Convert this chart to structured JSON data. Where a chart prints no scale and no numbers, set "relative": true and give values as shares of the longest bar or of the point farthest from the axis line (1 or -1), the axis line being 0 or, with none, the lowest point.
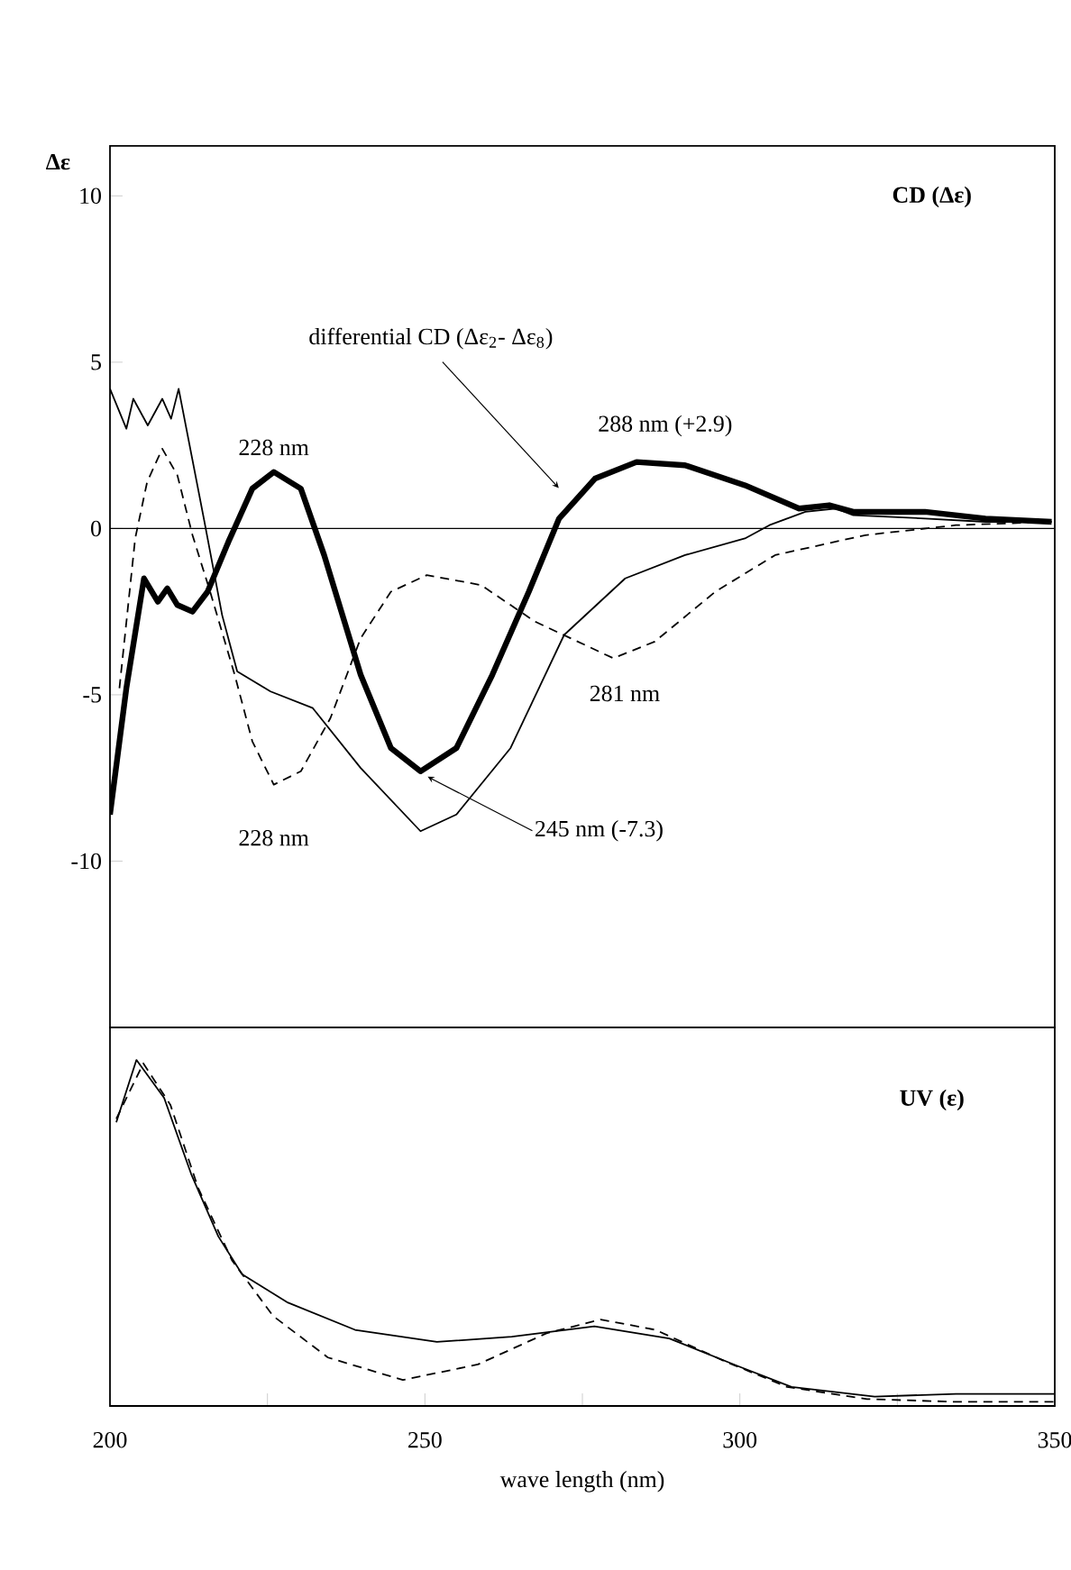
{
  "chart_data": [
    {
      "type": "line",
      "title": "CD (Δε)",
      "ylabel": "Δε",
      "xlim": [
        200,
        350
      ],
      "ylim": [
        -15,
        11.5
      ],
      "yticks": [
        -10,
        -5,
        0,
        5,
        10
      ],
      "tick_labels": "y",
      "ref_lines": [
        {
          "axis": "y",
          "value": 0
        }
      ],
      "annotations": [
        {
          "text": "228 nm",
          "x": 226,
          "y": 1.7
        },
        {
          "text": "228 nm",
          "x": 226,
          "y": -7.7
        },
        {
          "text": "245 nm (-7.3)",
          "x": 249.3,
          "y": -7.3
        },
        {
          "text": "281 nm",
          "x": 280,
          "y": -3.9
        },
        {
          "text": "288 nm (+2.9)",
          "x": 284,
          "y": 2.0
        }
      ],
      "series": [
        {
          "color": "#000000",
          "line_style": "solid",
          "x": [
            200,
            202.6,
            203.7,
            206,
            208.3,
            209.7,
            210.9,
            214.9,
            217.8,
            220.2,
            225.5,
            232.2,
            239.8,
            249.3,
            255,
            263.6,
            272.1,
            281.8,
            291.3,
            300.8,
            304.7,
            310.4,
            315.2,
            318,
            329.4,
            339,
            349.5
          ],
          "values": [
            4.2,
            3.0,
            3.9,
            3.1,
            3.9,
            3.3,
            4.2,
            0.3,
            -2.6,
            -4.3,
            -4.9,
            -5.4,
            -7.2,
            -9.1,
            -8.6,
            -6.6,
            -3.2,
            -1.5,
            -0.8,
            -0.3,
            0.1,
            0.5,
            0.6,
            0.4,
            0.3,
            0.2,
            0.2
          ]
        },
        {
          "color": "#000000",
          "line_style": "dashed",
          "x": [
            201.5,
            204,
            205.9,
            208.3,
            210.7,
            213.1,
            215.9,
            219.8,
            222.6,
            226,
            230.3,
            235,
            239.8,
            244.6,
            250.3,
            258.9,
            267.5,
            279.9,
            286.5,
            296.1,
            305.6,
            319.9,
            334.3,
            349.5
          ],
          "values": [
            -4.8,
            -0.3,
            1.4,
            2.4,
            1.6,
            -0.2,
            -1.9,
            -4.4,
            -6.4,
            -7.7,
            -7.3,
            -5.7,
            -3.3,
            -1.9,
            -1.4,
            -1.7,
            -2.8,
            -3.9,
            -3.4,
            -1.9,
            -0.8,
            -0.2,
            0.1,
            0.2
          ]
        },
        {
          "name": "differential CD (Δε$_{2}$- Δε$_{8}$)",
          "color": "#000000",
          "line_style": "solid",
          "x": [
            200,
            202.6,
            205.4,
            207.6,
            209.1,
            210.7,
            213.1,
            215.5,
            218.8,
            222.6,
            226,
            230.3,
            234,
            239.8,
            244.6,
            249.3,
            255,
            260.7,
            266.5,
            271.3,
            277,
            283.6,
            291.3,
            300.8,
            309.4,
            314.2,
            318,
            329.4,
            339,
            349.5
          ],
          "values": [
            -8.6,
            -4.8,
            -1.5,
            -2.2,
            -1.8,
            -2.3,
            -2.5,
            -1.9,
            -0.4,
            1.2,
            1.7,
            1.2,
            -0.8,
            -4.4,
            -6.6,
            -7.3,
            -6.6,
            -4.4,
            -1.9,
            0.3,
            1.5,
            2.0,
            1.9,
            1.3,
            0.6,
            0.7,
            0.5,
            0.5,
            0.3,
            0.2
          ]
        }
      ]
    },
    {
      "type": "line",
      "title": "UV (ε)",
      "xlabel": "wave length (nm)",
      "relative": true,
      "xlim": [
        200,
        350
      ],
      "xticks": [
        200,
        {
          "value": 225,
          "label": null
        },
        250,
        {
          "value": 275,
          "label": null
        },
        300,
        {
          "value": 325,
          "label": null
        },
        350
      ],
      "series": [
        {
          "color": "#000000",
          "line_style": "solid",
          "x": [
            201,
            204.2,
            208.6,
            212.9,
            217.2,
            221,
            228.1,
            238.9,
            251.9,
            263.8,
            276.9,
            288.8,
            299.6,
            308.2,
            321.4,
            334.3,
            350
          ],
          "values": [
            0.82,
            1.0,
            0.89,
            0.67,
            0.49,
            0.38,
            0.3,
            0.22,
            0.185,
            0.2,
            0.23,
            0.195,
            0.116,
            0.055,
            0.027,
            0.035,
            0.035
          ]
        },
        {
          "color": "#000000",
          "line_style": "dashed",
          "x": [
            201,
            205.3,
            209.6,
            214,
            219.4,
            225.9,
            234.6,
            246.5,
            258.4,
            269.3,
            277.9,
            286.6,
            297.5,
            307.5,
            320.2,
            334.3,
            350
          ],
          "values": [
            0.83,
            0.99,
            0.87,
            0.63,
            0.42,
            0.26,
            0.14,
            0.075,
            0.12,
            0.21,
            0.25,
            0.22,
            0.13,
            0.055,
            0.02,
            0.012,
            0.012
          ]
        }
      ]
    }
  ]
}
